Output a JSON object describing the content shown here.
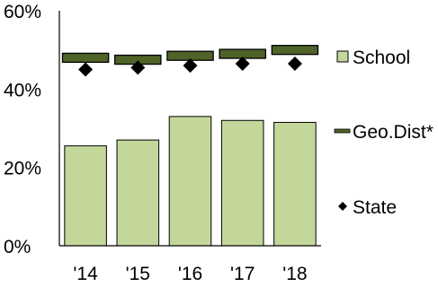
{
  "chart_data": {
    "type": "bar",
    "categories": [
      "'14",
      "'15",
      "'16",
      "'17",
      "'18"
    ],
    "ylim": [
      0,
      60
    ],
    "yticks": [
      0,
      20,
      40,
      60
    ],
    "ytick_labels": [
      "0%",
      "20%",
      "40%",
      "60%"
    ],
    "grid": false,
    "legend_position": "right",
    "series": [
      {
        "name": "School",
        "kind": "bar",
        "values": [
          25.5,
          27,
          33,
          32,
          31.5
        ],
        "color": "#c4d79b"
      },
      {
        "name": "Geo.Dist*",
        "kind": "dash",
        "values": [
          48,
          47.5,
          48.5,
          49,
          50
        ],
        "color": "#4f6228"
      },
      {
        "name": "State",
        "kind": "marker",
        "values": [
          45,
          45.5,
          46,
          46.5,
          46.5
        ],
        "color": "#000000"
      }
    ]
  }
}
